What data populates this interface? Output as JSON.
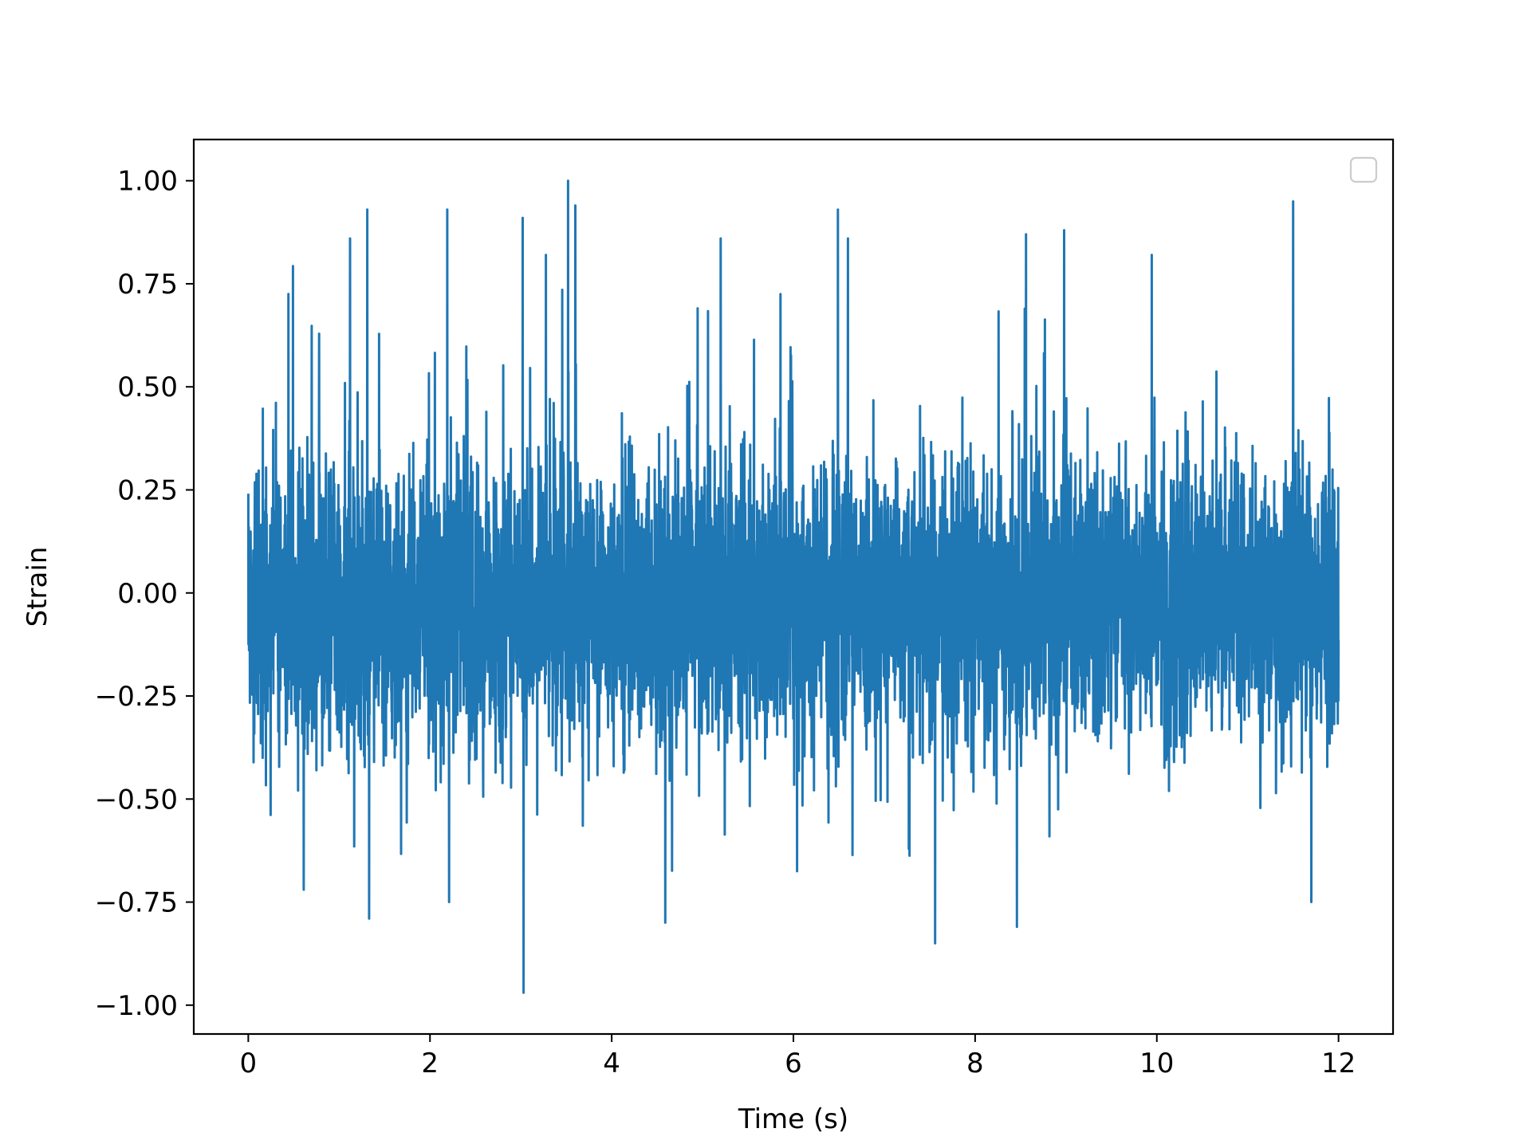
{
  "chart_data": {
    "type": "line",
    "title": "",
    "xlabel": "Time (s)",
    "ylabel": "Strain",
    "xlim": [
      -0.6,
      12.6
    ],
    "ylim": [
      -1.07,
      1.1
    ],
    "xticks": [
      0,
      2,
      4,
      6,
      8,
      10,
      12
    ],
    "xtick_labels": [
      "0",
      "2",
      "4",
      "6",
      "8",
      "10",
      "12"
    ],
    "yticks": [
      1.0,
      0.75,
      0.5,
      0.25,
      0.0,
      -0.25,
      -0.5,
      -0.75,
      -1.0
    ],
    "ytick_labels": [
      "1.00",
      "0.75",
      "0.50",
      "0.25",
      "0.00",
      "−0.25",
      "−0.50",
      "−0.75",
      "−1.00"
    ],
    "grid": false,
    "legend": {
      "placement": "upper right",
      "entries": []
    },
    "series": [
      {
        "color": "#1f77b4",
        "description": "dense noise signal sampled over 0-12 s, amplitude mostly within +/-0.45, occasional peaks up to 1.00 and troughs to -0.97",
        "x_range": [
          0,
          12
        ],
        "notable_peaks": [
          {
            "x": 1.12,
            "y": 0.86
          },
          {
            "x": 1.31,
            "y": 0.93
          },
          {
            "x": 2.19,
            "y": 0.93
          },
          {
            "x": 3.02,
            "y": 0.91
          },
          {
            "x": 3.52,
            "y": 1.0
          },
          {
            "x": 3.6,
            "y": 0.94
          },
          {
            "x": 5.2,
            "y": 0.86
          },
          {
            "x": 6.49,
            "y": 0.93
          },
          {
            "x": 6.6,
            "y": 0.86
          },
          {
            "x": 8.56,
            "y": 0.87
          },
          {
            "x": 8.98,
            "y": 0.88
          },
          {
            "x": 11.5,
            "y": 0.95
          }
        ],
        "notable_troughs": [
          {
            "x": 1.33,
            "y": -0.79
          },
          {
            "x": 2.21,
            "y": -0.75
          },
          {
            "x": 3.03,
            "y": -0.97
          },
          {
            "x": 4.59,
            "y": -0.8
          },
          {
            "x": 7.56,
            "y": -0.85
          },
          {
            "x": 8.46,
            "y": -0.81
          },
          {
            "x": 11.7,
            "y": -0.75
          }
        ]
      }
    ]
  }
}
